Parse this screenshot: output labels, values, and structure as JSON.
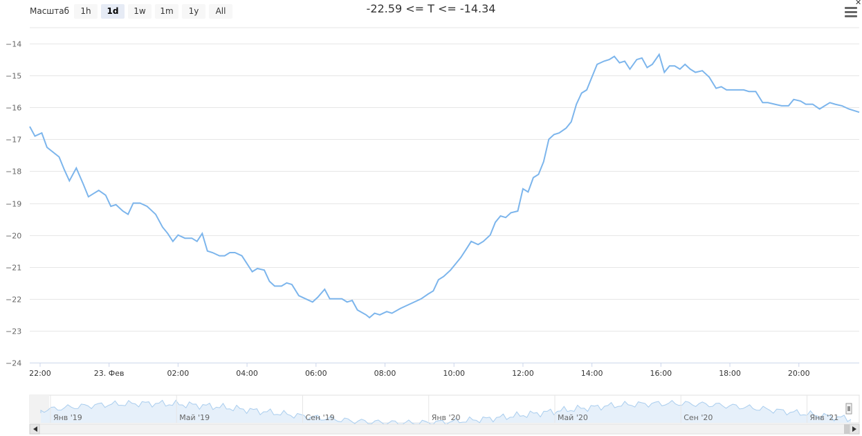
{
  "zoom": {
    "label": "Масштаб",
    "buttons": [
      "1h",
      "1d",
      "1w",
      "1m",
      "1y",
      "All"
    ],
    "selected": "1d"
  },
  "title": "-22.59 <= T <= -14.34",
  "colors": {
    "series": "#7cb5ec",
    "grid": "#e6e6e6",
    "navigator_fill": "#e6f0fa",
    "navigator_line": "#a9cdee"
  },
  "icons": {
    "menu": "hamburger-menu-icon",
    "corner": "close-icon"
  },
  "chart_data": {
    "type": "line",
    "ylim": [
      -24,
      -13.5
    ],
    "yticks": [
      -14,
      -15,
      -16,
      -17,
      -18,
      -19,
      -20,
      -21,
      -22,
      -23,
      -24
    ],
    "xlim": [
      -0.3,
      23.75
    ],
    "xticks": [
      {
        "label": "22:00",
        "x": 0
      },
      {
        "label": "23. Фев",
        "x": 2
      },
      {
        "label": "02:00",
        "x": 4
      },
      {
        "label": "04:00",
        "x": 6
      },
      {
        "label": "06:00",
        "x": 8
      },
      {
        "label": "08:00",
        "x": 10
      },
      {
        "label": "10:00",
        "x": 12
      },
      {
        "label": "12:00",
        "x": 14
      },
      {
        "label": "14:00",
        "x": 16
      },
      {
        "label": "16:00",
        "x": 18
      },
      {
        "label": "18:00",
        "x": 20
      },
      {
        "label": "20:00",
        "x": 22
      }
    ],
    "series": [
      {
        "points": [
          [
            -0.3,
            -16.6
          ],
          [
            -0.15,
            -16.9
          ],
          [
            0.05,
            -16.8
          ],
          [
            0.2,
            -17.25
          ],
          [
            0.55,
            -17.55
          ],
          [
            0.7,
            -17.95
          ],
          [
            0.85,
            -18.3
          ],
          [
            1.05,
            -17.9
          ],
          [
            1.25,
            -18.4
          ],
          [
            1.4,
            -18.8
          ],
          [
            1.55,
            -18.7
          ],
          [
            1.7,
            -18.6
          ],
          [
            1.9,
            -18.75
          ],
          [
            2.05,
            -19.1
          ],
          [
            2.2,
            -19.05
          ],
          [
            2.4,
            -19.25
          ],
          [
            2.55,
            -19.35
          ],
          [
            2.7,
            -19.0
          ],
          [
            2.9,
            -19.0
          ],
          [
            3.1,
            -19.1
          ],
          [
            3.2,
            -19.2
          ],
          [
            3.35,
            -19.35
          ],
          [
            3.55,
            -19.75
          ],
          [
            3.7,
            -19.95
          ],
          [
            3.85,
            -20.2
          ],
          [
            4.0,
            -20.0
          ],
          [
            4.2,
            -20.1
          ],
          [
            4.4,
            -20.1
          ],
          [
            4.55,
            -20.2
          ],
          [
            4.7,
            -19.95
          ],
          [
            4.85,
            -20.5
          ],
          [
            5.0,
            -20.55
          ],
          [
            5.2,
            -20.65
          ],
          [
            5.35,
            -20.65
          ],
          [
            5.5,
            -20.55
          ],
          [
            5.65,
            -20.55
          ],
          [
            5.85,
            -20.65
          ],
          [
            6.0,
            -20.9
          ],
          [
            6.15,
            -21.15
          ],
          [
            6.3,
            -21.05
          ],
          [
            6.5,
            -21.1
          ],
          [
            6.65,
            -21.45
          ],
          [
            6.8,
            -21.6
          ],
          [
            7.0,
            -21.6
          ],
          [
            7.15,
            -21.5
          ],
          [
            7.3,
            -21.55
          ],
          [
            7.5,
            -21.9
          ],
          [
            7.7,
            -22.0
          ],
          [
            7.9,
            -22.1
          ],
          [
            8.05,
            -21.95
          ],
          [
            8.25,
            -21.7
          ],
          [
            8.4,
            -22.0
          ],
          [
            8.6,
            -22.0
          ],
          [
            8.75,
            -22.0
          ],
          [
            8.9,
            -22.1
          ],
          [
            9.05,
            -22.05
          ],
          [
            9.2,
            -22.35
          ],
          [
            9.45,
            -22.5
          ],
          [
            9.55,
            -22.59
          ],
          [
            9.7,
            -22.45
          ],
          [
            9.85,
            -22.5
          ],
          [
            10.05,
            -22.4
          ],
          [
            10.2,
            -22.45
          ],
          [
            10.45,
            -22.3
          ],
          [
            10.65,
            -22.2
          ],
          [
            10.85,
            -22.1
          ],
          [
            11.05,
            -22.0
          ],
          [
            11.25,
            -21.85
          ],
          [
            11.4,
            -21.75
          ],
          [
            11.55,
            -21.4
          ],
          [
            11.7,
            -21.3
          ],
          [
            11.9,
            -21.1
          ],
          [
            12.05,
            -20.9
          ],
          [
            12.2,
            -20.7
          ],
          [
            12.35,
            -20.45
          ],
          [
            12.5,
            -20.2
          ],
          [
            12.7,
            -20.3
          ],
          [
            12.85,
            -20.2
          ],
          [
            13.05,
            -20.0
          ],
          [
            13.2,
            -19.6
          ],
          [
            13.35,
            -19.4
          ],
          [
            13.5,
            -19.45
          ],
          [
            13.65,
            -19.3
          ],
          [
            13.85,
            -19.25
          ],
          [
            14.0,
            -18.55
          ],
          [
            14.15,
            -18.65
          ],
          [
            14.3,
            -18.2
          ],
          [
            14.45,
            -18.1
          ],
          [
            14.6,
            -17.7
          ],
          [
            14.75,
            -17.0
          ],
          [
            14.9,
            -16.85
          ],
          [
            15.05,
            -16.8
          ],
          [
            15.25,
            -16.65
          ],
          [
            15.4,
            -16.45
          ],
          [
            15.55,
            -15.9
          ],
          [
            15.7,
            -15.55
          ],
          [
            15.85,
            -15.45
          ],
          [
            16.0,
            -15.05
          ],
          [
            16.15,
            -14.65
          ],
          [
            16.35,
            -14.55
          ],
          [
            16.5,
            -14.5
          ],
          [
            16.65,
            -14.4
          ],
          [
            16.8,
            -14.6
          ],
          [
            16.95,
            -14.55
          ],
          [
            17.1,
            -14.8
          ],
          [
            17.3,
            -14.5
          ],
          [
            17.45,
            -14.45
          ],
          [
            17.6,
            -14.75
          ],
          [
            17.75,
            -14.65
          ],
          [
            17.95,
            -14.34
          ],
          [
            18.1,
            -14.9
          ],
          [
            18.25,
            -14.7
          ],
          [
            18.4,
            -14.7
          ],
          [
            18.55,
            -14.8
          ],
          [
            18.7,
            -14.65
          ],
          [
            18.85,
            -14.8
          ],
          [
            19.0,
            -14.9
          ],
          [
            19.2,
            -14.85
          ],
          [
            19.4,
            -15.05
          ],
          [
            19.6,
            -15.4
          ],
          [
            19.75,
            -15.35
          ],
          [
            19.9,
            -15.45
          ],
          [
            20.05,
            -15.45
          ],
          [
            20.25,
            -15.45
          ],
          [
            20.4,
            -15.45
          ],
          [
            20.55,
            -15.5
          ],
          [
            20.75,
            -15.5
          ],
          [
            20.95,
            -15.85
          ],
          [
            21.1,
            -15.85
          ],
          [
            21.3,
            -15.9
          ],
          [
            21.5,
            -15.95
          ],
          [
            21.7,
            -15.95
          ],
          [
            21.85,
            -15.75
          ],
          [
            22.05,
            -15.8
          ],
          [
            22.2,
            -15.9
          ],
          [
            22.4,
            -15.9
          ],
          [
            22.6,
            -16.05
          ],
          [
            22.75,
            -15.95
          ],
          [
            22.9,
            -15.85
          ],
          [
            23.05,
            -15.9
          ],
          [
            23.25,
            -15.95
          ],
          [
            23.45,
            -16.05
          ],
          [
            23.6,
            -16.1
          ],
          [
            23.75,
            -16.15
          ]
        ]
      }
    ],
    "navigator": {
      "labels": [
        {
          "label": "Янв '19",
          "t": 0.025
        },
        {
          "label": "Май '19",
          "t": 0.177
        },
        {
          "label": "Сен '19",
          "t": 0.329
        },
        {
          "label": "Янв '20",
          "t": 0.481
        },
        {
          "label": "Май '20",
          "t": 0.633
        },
        {
          "label": "Сен '20",
          "t": 0.785
        },
        {
          "label": "Янв '21",
          "t": 0.937
        }
      ]
    }
  }
}
